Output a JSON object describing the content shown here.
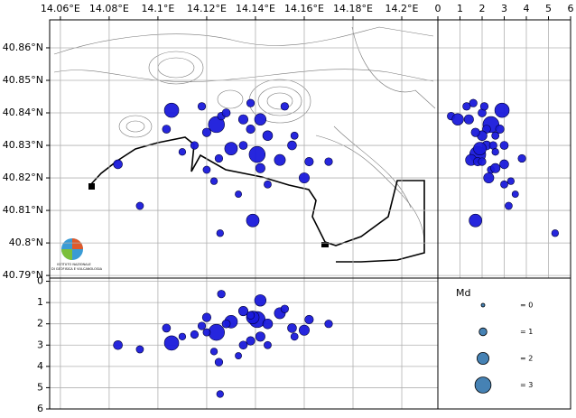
{
  "chart_data": [
    {
      "type": "scatter",
      "xticks": [
        {
          "value": 14.06,
          "label": "14.06°E"
        },
        {
          "value": 14.08,
          "label": "14.08°E"
        },
        {
          "value": 14.1,
          "label": "14.1°E"
        },
        {
          "value": 14.12,
          "label": "14.12°E"
        },
        {
          "value": 14.14,
          "label": "14.14°E"
        },
        {
          "value": 14.16,
          "label": "14.16°E"
        },
        {
          "value": 14.18,
          "label": "14.18°E"
        },
        {
          "value": 14.2,
          "label": "14.2°E"
        }
      ],
      "yticks": [
        {
          "value": 40.79,
          "label": "40.79°N"
        },
        {
          "value": 40.8,
          "label": "40.8°N"
        },
        {
          "value": 40.81,
          "label": "40.81°N"
        },
        {
          "value": 40.82,
          "label": "40.82°N"
        },
        {
          "value": 40.83,
          "label": "40.83°N"
        },
        {
          "value": 40.84,
          "label": "40.84°N"
        },
        {
          "value": 40.85,
          "label": "40.85°N"
        },
        {
          "value": 40.86,
          "label": "40.86°N"
        }
      ],
      "xlim": [
        14.0556,
        14.2148
      ],
      "ylim": [
        40.7892,
        40.8686
      ],
      "grid": true,
      "color": "#1a1adb",
      "annotations": [
        "ISTITUTO NAZIONALE",
        "DI GEOFISICA E VULCANOLOGIA"
      ],
      "x": [
        14.1056,
        14.124,
        14.1407,
        14.1389,
        14.1255,
        14.0926,
        14.0836,
        14.1035,
        14.123,
        14.12,
        14.145,
        14.15,
        14.155,
        14.16,
        14.162,
        14.135,
        14.138,
        14.126,
        14.142,
        14.13,
        14.115,
        14.128,
        14.152,
        14.17,
        14.145,
        14.133,
        14.11,
        14.138,
        14.125,
        14.142,
        14.12,
        14.135,
        14.156,
        14.118
      ],
      "y": [
        40.8408,
        40.8364,
        40.8272,
        40.8069,
        40.803,
        40.8114,
        40.8242,
        40.835,
        40.819,
        40.8225,
        40.833,
        40.8255,
        40.83,
        40.82,
        40.825,
        40.838,
        40.835,
        40.839,
        40.838,
        40.829,
        40.83,
        40.84,
        40.842,
        40.825,
        40.818,
        40.815,
        40.828,
        40.843,
        40.826,
        40.823,
        40.834,
        40.83,
        40.833,
        40.842
      ],
      "sizes": [
        2.6,
        3.0,
        3.0,
        2.2,
        0.8,
        0.9,
        1.3,
        1.1,
        0.8,
        0.9,
        1.5,
        1.8,
        1.3,
        1.6,
        1.2,
        1.4,
        1.2,
        1.0,
        1.9,
        2.2,
        1.0,
        1.1,
        1.0,
        1.0,
        0.9,
        0.7,
        0.8,
        1.0,
        1.0,
        1.4,
        1.2,
        1.1,
        0.9,
        1.0
      ],
      "size_legend": {
        "title": "Md",
        "values": [
          {
            "value": 0,
            "label": "= 0"
          },
          {
            "value": 1,
            "label": "= 1"
          },
          {
            "value": 2,
            "label": "= 2"
          },
          {
            "value": 3,
            "label": "= 3"
          }
        ]
      }
    },
    {
      "type": "scatter",
      "xticks": [
        0,
        1,
        2,
        3,
        4,
        5,
        6
      ],
      "xlim": [
        0,
        6
      ],
      "yticks": [
        40.79,
        40.8,
        40.81,
        40.82,
        40.83,
        40.84,
        40.85,
        40.86
      ],
      "ylim": [
        40.7892,
        40.8686
      ],
      "grid": true,
      "color": "#1a1adb",
      "x": [
        2.9,
        2.4,
        1.8,
        1.7,
        5.3,
        3.2,
        3.0,
        2.2,
        3.3,
        2.4,
        2.0,
        1.5,
        2.2,
        2.3,
        1.8,
        1.4,
        2.8,
        0.6,
        0.9,
        1.9,
        2.5,
        2.0,
        1.3,
        2.0,
        3.0,
        3.5,
        2.6,
        1.6,
        3.8,
        2.6,
        1.7,
        3.0,
        2.6,
        2.1
      ],
      "y": [
        40.8408,
        40.8364,
        40.8272,
        40.8069,
        40.803,
        40.8114,
        40.8242,
        40.835,
        40.819,
        40.8225,
        40.833,
        40.8255,
        40.83,
        40.82,
        40.825,
        40.838,
        40.835,
        40.839,
        40.838,
        40.829,
        40.83,
        40.84,
        40.842,
        40.825,
        40.818,
        40.815,
        40.828,
        40.843,
        40.826,
        40.823,
        40.834,
        40.83,
        40.833,
        40.842
      ],
      "sizes": [
        2.6,
        3.0,
        3.0,
        2.2,
        0.8,
        0.9,
        1.3,
        1.1,
        0.8,
        0.9,
        1.5,
        1.8,
        1.3,
        1.6,
        1.2,
        1.4,
        1.2,
        1.0,
        1.9,
        2.2,
        1.0,
        1.1,
        1.0,
        1.0,
        0.9,
        0.7,
        0.8,
        1.0,
        1.0,
        1.4,
        1.2,
        1.1,
        0.9,
        1.0
      ]
    },
    {
      "type": "scatter",
      "xticks": [
        14.06,
        14.08,
        14.1,
        14.12,
        14.14,
        14.16,
        14.18,
        14.2
      ],
      "xlim": [
        14.0556,
        14.2148
      ],
      "yticks": [
        0,
        1,
        2,
        3,
        4,
        5,
        6
      ],
      "ylim": [
        6,
        -0.15
      ],
      "grid": true,
      "color": "#1a1adb",
      "x": [
        14.1056,
        14.124,
        14.1407,
        14.1389,
        14.1255,
        14.0926,
        14.0836,
        14.1035,
        14.123,
        14.12,
        14.145,
        14.15,
        14.155,
        14.16,
        14.162,
        14.135,
        14.138,
        14.126,
        14.142,
        14.13,
        14.115,
        14.128,
        14.152,
        14.17,
        14.145,
        14.133,
        14.11,
        14.138,
        14.125,
        14.142,
        14.12,
        14.135,
        14.156,
        14.118
      ],
      "y": [
        2.9,
        2.4,
        1.8,
        1.7,
        5.3,
        3.2,
        3.0,
        2.2,
        3.3,
        2.4,
        2.0,
        1.5,
        2.2,
        2.3,
        1.8,
        1.4,
        2.8,
        0.6,
        0.9,
        1.9,
        2.5,
        2.0,
        1.3,
        2.0,
        3.0,
        3.5,
        2.6,
        1.6,
        3.8,
        2.6,
        1.7,
        3.0,
        2.6,
        2.1
      ],
      "sizes": [
        2.6,
        3.0,
        3.0,
        2.2,
        0.8,
        0.9,
        1.3,
        1.1,
        0.8,
        0.9,
        1.5,
        1.8,
        1.3,
        1.6,
        1.2,
        1.4,
        1.2,
        1.0,
        1.9,
        2.2,
        1.0,
        1.1,
        1.0,
        1.0,
        0.9,
        0.7,
        0.8,
        1.0,
        1.0,
        1.4,
        1.2,
        1.1,
        0.9,
        1.0
      ]
    }
  ]
}
